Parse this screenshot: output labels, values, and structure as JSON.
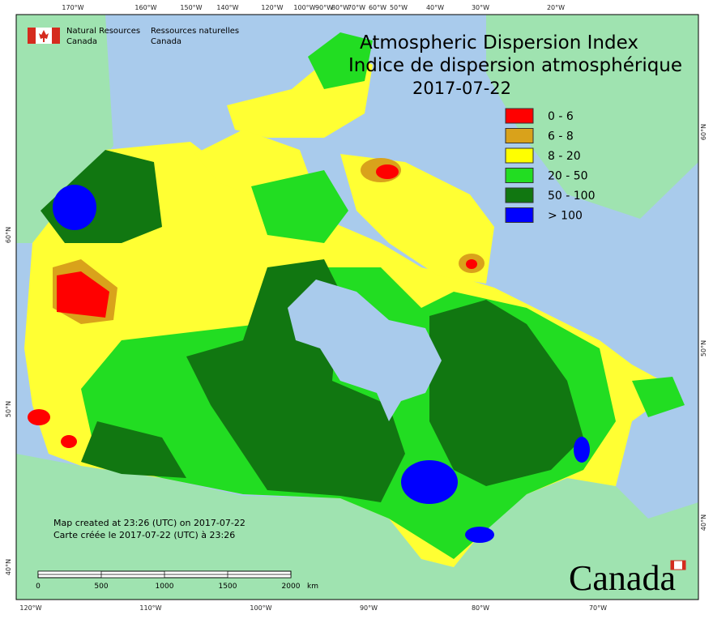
{
  "header": {
    "org_en": [
      "Natural Resources",
      "Canada"
    ],
    "org_fr": [
      "Ressources naturelles",
      "Canada"
    ]
  },
  "title": {
    "en": "Atmospheric Dispersion Index",
    "fr": "Indice de dispersion atmosphérique",
    "date": "2017-07-22"
  },
  "legend": [
    {
      "label": "0 - 6",
      "color": "#ff0000"
    },
    {
      "label": "6 - 8",
      "color": "#d9a21b"
    },
    {
      "label": "8 - 20",
      "color": "#ffff00"
    },
    {
      "label": "20 - 50",
      "color": "#22dd22"
    },
    {
      "label": "50 - 100",
      "color": "#117711"
    },
    {
      "label": "> 100",
      "color": "#0000ff"
    }
  ],
  "graticule": {
    "top": [
      "170°W",
      "160°W",
      "150°W",
      "140°W",
      "120°W",
      "100°W",
      "90°W",
      "80°W",
      "70°W",
      "60°W",
      "50°W",
      "40°W",
      "30°W",
      "20°W"
    ],
    "bottom": [
      "120°W",
      "110°W",
      "100°W",
      "90°W",
      "80°W",
      "70°W"
    ],
    "left": [
      "60°N",
      "50°N",
      "40°N"
    ],
    "right": [
      "60°N",
      "50°N",
      "40°N"
    ]
  },
  "credits": [
    "Map created at 23:26 (UTC) on 2017-07-22",
    "Carte créée le 2017-07-22 (UTC) à 23:26"
  ],
  "scale_bar": {
    "labels": [
      0,
      500,
      1000,
      1500,
      2000
    ],
    "unit": "km"
  },
  "wordmark": "Canada"
}
